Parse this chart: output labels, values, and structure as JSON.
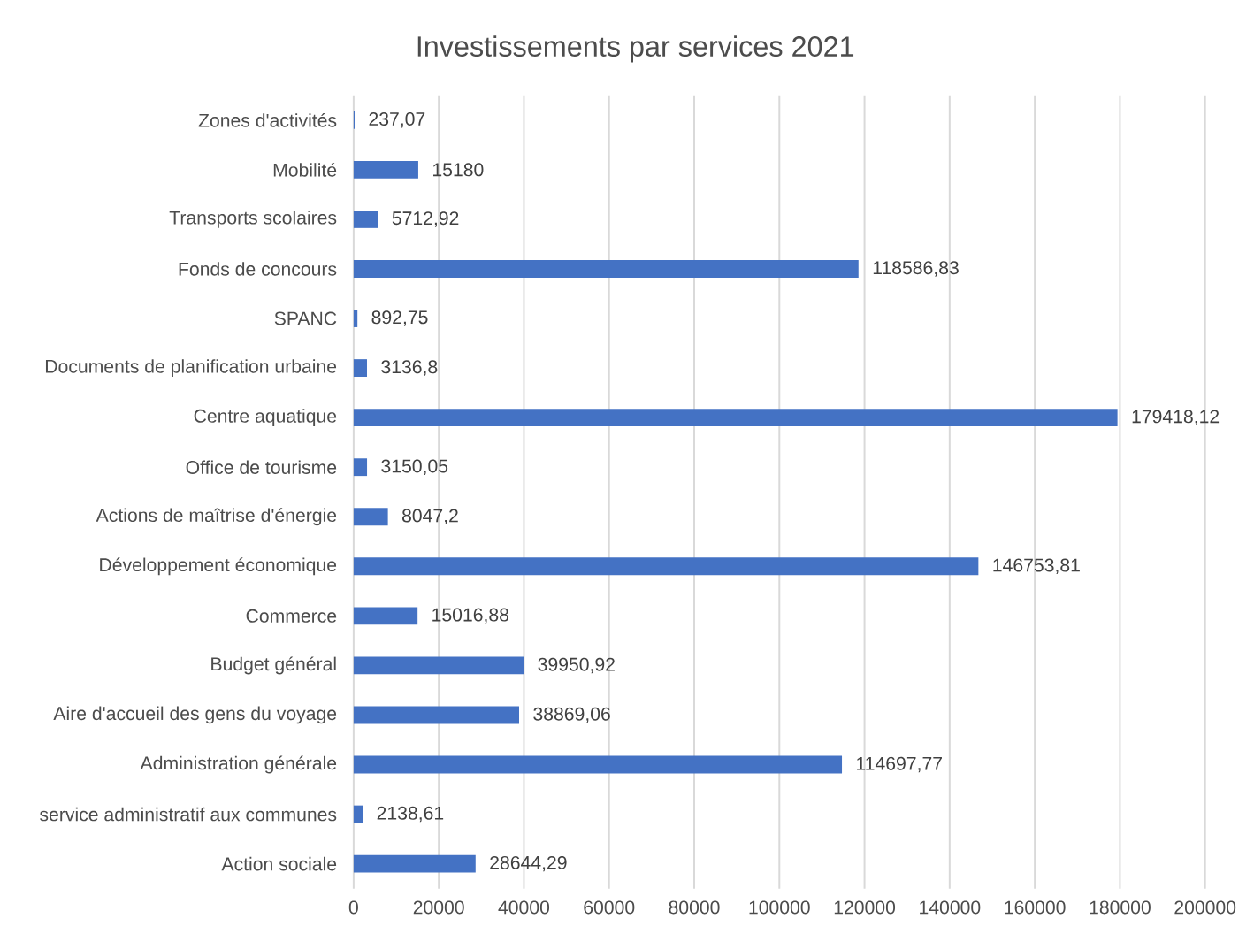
{
  "chart_data": {
    "type": "bar",
    "orientation": "horizontal",
    "title": "Investissements par services 2021",
    "categories": [
      "Zones d'activités",
      "Mobilité",
      "Transports scolaires",
      "Fonds de concours",
      "SPANC",
      "Documents de planification urbaine",
      "Centre aquatique",
      "Office de tourisme",
      "Actions de maîtrise d'énergie",
      "Développement économique",
      "Commerce",
      "Budget général",
      "Aire d'accueil des gens du voyage",
      "Administration générale",
      "service administratif aux communes",
      "Action sociale"
    ],
    "values": [
      237.07,
      15180,
      5712.92,
      118586.83,
      892.75,
      3136.8,
      179418.12,
      3150.05,
      8047.2,
      146753.81,
      15016.88,
      39950.92,
      38869.06,
      114697.77,
      2138.61,
      28644.29
    ],
    "value_labels": [
      "237,07",
      "15180",
      "5712,92",
      "118586,83",
      "892,75",
      "3136,8",
      "179418,12",
      "3150,05",
      "8047,2",
      "146753,81",
      "15016,88",
      "39950,92",
      "38869,06",
      "114697,77",
      "2138,61",
      "28644,29"
    ],
    "color": "#4472c4",
    "xlim": [
      0,
      200000
    ],
    "xticks": [
      0,
      20000,
      40000,
      60000,
      80000,
      100000,
      120000,
      140000,
      160000,
      180000,
      200000
    ],
    "grid": "x"
  }
}
